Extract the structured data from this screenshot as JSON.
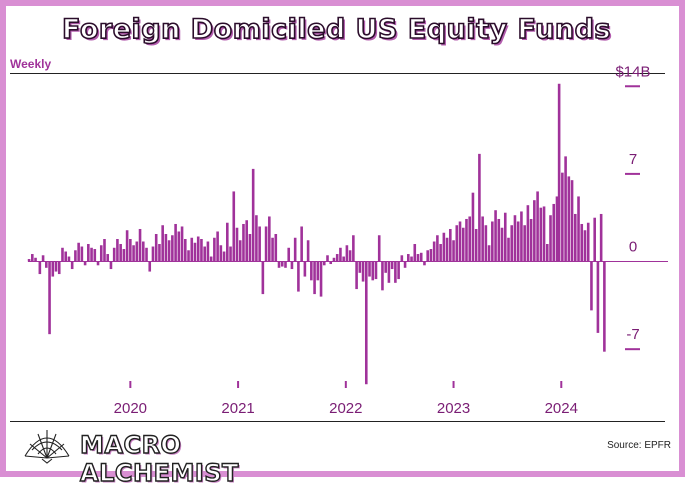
{
  "header": {
    "title": "Foreign Domiciled US Equity Funds",
    "subtitle": "Weekly"
  },
  "footer": {
    "brand": "MACRO ALCHEMIST",
    "source": "Source: EPFR"
  },
  "colors": {
    "bar": "#a0329a",
    "frame": "#d98fd3",
    "text": "#7a1d74"
  },
  "chart_data": {
    "type": "bar",
    "title": "Foreign Domiciled US Equity Funds",
    "subtitle": "Weekly",
    "y_unit": "$B",
    "ylim": [
      -10.5,
      14.5
    ],
    "yticks": [
      {
        "value": 14,
        "label": "$14B"
      },
      {
        "value": 7,
        "label": "7"
      },
      {
        "value": 0,
        "label": "0"
      },
      {
        "value": -7,
        "label": "-7"
      }
    ],
    "xlim": [
      2019.05,
      2024.48
    ],
    "xticks": [
      {
        "value": 2020,
        "label": "2020"
      },
      {
        "value": 2021,
        "label": "2021"
      },
      {
        "value": 2022,
        "label": "2022"
      },
      {
        "value": 2023,
        "label": "2023"
      },
      {
        "value": 2024,
        "label": "2024"
      }
    ],
    "grid": false,
    "legend": "none",
    "points": [
      {
        "x": 2019.06,
        "y": 0.2
      },
      {
        "x": 2019.09,
        "y": 0.6
      },
      {
        "x": 2019.12,
        "y": 0.3
      },
      {
        "x": 2019.16,
        "y": -1.0
      },
      {
        "x": 2019.19,
        "y": 0.5
      },
      {
        "x": 2019.22,
        "y": -0.5
      },
      {
        "x": 2019.25,
        "y": -5.8
      },
      {
        "x": 2019.28,
        "y": -1.2
      },
      {
        "x": 2019.31,
        "y": -0.8
      },
      {
        "x": 2019.34,
        "y": -1.0
      },
      {
        "x": 2019.37,
        "y": 1.1
      },
      {
        "x": 2019.4,
        "y": 0.8
      },
      {
        "x": 2019.43,
        "y": 0.4
      },
      {
        "x": 2019.46,
        "y": -0.6
      },
      {
        "x": 2019.49,
        "y": 0.9
      },
      {
        "x": 2019.52,
        "y": 1.5
      },
      {
        "x": 2019.55,
        "y": 1.2
      },
      {
        "x": 2019.58,
        "y": -0.3
      },
      {
        "x": 2019.61,
        "y": 1.4
      },
      {
        "x": 2019.64,
        "y": 1.1
      },
      {
        "x": 2019.67,
        "y": 1.0
      },
      {
        "x": 2019.7,
        "y": -0.3
      },
      {
        "x": 2019.73,
        "y": 1.3
      },
      {
        "x": 2019.76,
        "y": 1.8
      },
      {
        "x": 2019.79,
        "y": 0.6
      },
      {
        "x": 2019.82,
        "y": -0.6
      },
      {
        "x": 2019.85,
        "y": 1.1
      },
      {
        "x": 2019.88,
        "y": 1.8
      },
      {
        "x": 2019.91,
        "y": 1.4
      },
      {
        "x": 2019.94,
        "y": 1.0
      },
      {
        "x": 2019.97,
        "y": 2.5
      },
      {
        "x": 2020.0,
        "y": 1.8
      },
      {
        "x": 2020.03,
        "y": 1.3
      },
      {
        "x": 2020.06,
        "y": 1.6
      },
      {
        "x": 2020.09,
        "y": 2.6
      },
      {
        "x": 2020.12,
        "y": 1.6
      },
      {
        "x": 2020.15,
        "y": 1.1
      },
      {
        "x": 2020.18,
        "y": -0.8
      },
      {
        "x": 2020.21,
        "y": 1.2
      },
      {
        "x": 2020.24,
        "y": 2.2
      },
      {
        "x": 2020.27,
        "y": 1.4
      },
      {
        "x": 2020.3,
        "y": 2.9
      },
      {
        "x": 2020.33,
        "y": 2.2
      },
      {
        "x": 2020.36,
        "y": 1.7
      },
      {
        "x": 2020.39,
        "y": 2.1
      },
      {
        "x": 2020.42,
        "y": 3.0
      },
      {
        "x": 2020.45,
        "y": 2.4
      },
      {
        "x": 2020.48,
        "y": 2.8
      },
      {
        "x": 2020.51,
        "y": 1.8
      },
      {
        "x": 2020.54,
        "y": 0.9
      },
      {
        "x": 2020.57,
        "y": 1.9
      },
      {
        "x": 2020.6,
        "y": 1.5
      },
      {
        "x": 2020.63,
        "y": 2.0
      },
      {
        "x": 2020.66,
        "y": 1.8
      },
      {
        "x": 2020.69,
        "y": 1.2
      },
      {
        "x": 2020.72,
        "y": 1.6
      },
      {
        "x": 2020.75,
        "y": 0.4
      },
      {
        "x": 2020.78,
        "y": 1.9
      },
      {
        "x": 2020.81,
        "y": 2.4
      },
      {
        "x": 2020.84,
        "y": 1.3
      },
      {
        "x": 2020.87,
        "y": 0.8
      },
      {
        "x": 2020.9,
        "y": 3.1
      },
      {
        "x": 2020.93,
        "y": 1.2
      },
      {
        "x": 2020.96,
        "y": 5.6
      },
      {
        "x": 2020.99,
        "y": 2.7
      },
      {
        "x": 2021.02,
        "y": 1.7
      },
      {
        "x": 2021.05,
        "y": 3.0
      },
      {
        "x": 2021.08,
        "y": 3.3
      },
      {
        "x": 2021.11,
        "y": 2.2
      },
      {
        "x": 2021.14,
        "y": 7.4
      },
      {
        "x": 2021.17,
        "y": 3.7
      },
      {
        "x": 2021.2,
        "y": 2.8
      },
      {
        "x": 2021.23,
        "y": -2.6
      },
      {
        "x": 2021.26,
        "y": 2.8
      },
      {
        "x": 2021.29,
        "y": 3.6
      },
      {
        "x": 2021.32,
        "y": 1.9
      },
      {
        "x": 2021.35,
        "y": 2.2
      },
      {
        "x": 2021.38,
        "y": -0.5
      },
      {
        "x": 2021.41,
        "y": -0.4
      },
      {
        "x": 2021.44,
        "y": -0.5
      },
      {
        "x": 2021.47,
        "y": 1.1
      },
      {
        "x": 2021.5,
        "y": -0.6
      },
      {
        "x": 2021.53,
        "y": 1.9
      },
      {
        "x": 2021.56,
        "y": -2.4
      },
      {
        "x": 2021.59,
        "y": 2.8
      },
      {
        "x": 2021.62,
        "y": -1.2
      },
      {
        "x": 2021.65,
        "y": 1.7
      },
      {
        "x": 2021.68,
        "y": -1.5
      },
      {
        "x": 2021.71,
        "y": -2.6
      },
      {
        "x": 2021.74,
        "y": -1.5
      },
      {
        "x": 2021.77,
        "y": -2.8
      },
      {
        "x": 2021.8,
        "y": -0.3
      },
      {
        "x": 2021.83,
        "y": 0.5
      },
      {
        "x": 2021.86,
        "y": -0.2
      },
      {
        "x": 2021.89,
        "y": 0.3
      },
      {
        "x": 2021.92,
        "y": 0.6
      },
      {
        "x": 2021.95,
        "y": 1.1
      },
      {
        "x": 2021.98,
        "y": 0.4
      },
      {
        "x": 2022.01,
        "y": 1.3
      },
      {
        "x": 2022.04,
        "y": 0.9
      },
      {
        "x": 2022.07,
        "y": 2.1
      },
      {
        "x": 2022.1,
        "y": -2.2
      },
      {
        "x": 2022.13,
        "y": -0.9
      },
      {
        "x": 2022.16,
        "y": -1.6
      },
      {
        "x": 2022.19,
        "y": -9.8
      },
      {
        "x": 2022.22,
        "y": -1.2
      },
      {
        "x": 2022.25,
        "y": -1.5
      },
      {
        "x": 2022.28,
        "y": -1.4
      },
      {
        "x": 2022.31,
        "y": 2.1
      },
      {
        "x": 2022.34,
        "y": -2.3
      },
      {
        "x": 2022.37,
        "y": -0.9
      },
      {
        "x": 2022.4,
        "y": -1.7
      },
      {
        "x": 2022.43,
        "y": -0.6
      },
      {
        "x": 2022.46,
        "y": -1.7
      },
      {
        "x": 2022.49,
        "y": -1.4
      },
      {
        "x": 2022.52,
        "y": 0.5
      },
      {
        "x": 2022.55,
        "y": -0.5
      },
      {
        "x": 2022.58,
        "y": 0.6
      },
      {
        "x": 2022.61,
        "y": 0.4
      },
      {
        "x": 2022.64,
        "y": 1.4
      },
      {
        "x": 2022.67,
        "y": 0.6
      },
      {
        "x": 2022.7,
        "y": 0.7
      },
      {
        "x": 2022.73,
        "y": -0.3
      },
      {
        "x": 2022.76,
        "y": 0.9
      },
      {
        "x": 2022.79,
        "y": 1.0
      },
      {
        "x": 2022.82,
        "y": 1.6
      },
      {
        "x": 2022.85,
        "y": 2.1
      },
      {
        "x": 2022.88,
        "y": 1.4
      },
      {
        "x": 2022.91,
        "y": 2.3
      },
      {
        "x": 2022.94,
        "y": 1.9
      },
      {
        "x": 2022.97,
        "y": 2.6
      },
      {
        "x": 2023.0,
        "y": 1.7
      },
      {
        "x": 2023.03,
        "y": 2.9
      },
      {
        "x": 2023.06,
        "y": 3.2
      },
      {
        "x": 2023.09,
        "y": 2.7
      },
      {
        "x": 2023.12,
        "y": 3.4
      },
      {
        "x": 2023.15,
        "y": 3.6
      },
      {
        "x": 2023.18,
        "y": 5.5
      },
      {
        "x": 2023.21,
        "y": 2.6
      },
      {
        "x": 2023.24,
        "y": 8.6
      },
      {
        "x": 2023.27,
        "y": 3.6
      },
      {
        "x": 2023.3,
        "y": 2.9
      },
      {
        "x": 2023.33,
        "y": 1.3
      },
      {
        "x": 2023.36,
        "y": 3.2
      },
      {
        "x": 2023.39,
        "y": 4.1
      },
      {
        "x": 2023.42,
        "y": 3.4
      },
      {
        "x": 2023.45,
        "y": 2.7
      },
      {
        "x": 2023.48,
        "y": 3.9
      },
      {
        "x": 2023.51,
        "y": 1.9
      },
      {
        "x": 2023.54,
        "y": 2.9
      },
      {
        "x": 2023.57,
        "y": 3.7
      },
      {
        "x": 2023.6,
        "y": 3.2
      },
      {
        "x": 2023.63,
        "y": 4.0
      },
      {
        "x": 2023.66,
        "y": 2.9
      },
      {
        "x": 2023.69,
        "y": 4.5
      },
      {
        "x": 2023.72,
        "y": 3.4
      },
      {
        "x": 2023.75,
        "y": 4.9
      },
      {
        "x": 2023.78,
        "y": 5.6
      },
      {
        "x": 2023.81,
        "y": 4.3
      },
      {
        "x": 2023.84,
        "y": 4.4
      },
      {
        "x": 2023.87,
        "y": 1.4
      },
      {
        "x": 2023.9,
        "y": 3.7
      },
      {
        "x": 2023.93,
        "y": 4.6
      },
      {
        "x": 2023.96,
        "y": 5.2
      },
      {
        "x": 2023.98,
        "y": 14.2
      },
      {
        "x": 2024.01,
        "y": 7.1
      },
      {
        "x": 2024.04,
        "y": 8.4
      },
      {
        "x": 2024.07,
        "y": 6.8
      },
      {
        "x": 2024.1,
        "y": 6.5
      },
      {
        "x": 2024.13,
        "y": 3.8
      },
      {
        "x": 2024.16,
        "y": 5.2
      },
      {
        "x": 2024.19,
        "y": 3.0
      },
      {
        "x": 2024.22,
        "y": 2.5
      },
      {
        "x": 2024.25,
        "y": 3.1
      },
      {
        "x": 2024.28,
        "y": -3.9
      },
      {
        "x": 2024.31,
        "y": 3.5
      },
      {
        "x": 2024.34,
        "y": -5.7
      },
      {
        "x": 2024.37,
        "y": 3.8
      },
      {
        "x": 2024.4,
        "y": -7.2
      }
    ],
    "neg_markers": [
      {
        "x": 2019.25,
        "y": -5.8
      },
      {
        "x": 2021.23,
        "y": -2.6
      },
      {
        "x": 2022.19,
        "y": -9.8
      },
      {
        "x": 2023.87,
        "y": 1.4
      },
      {
        "x": 2024.28,
        "y": -3.9
      },
      {
        "x": 2024.34,
        "y": -5.7
      },
      {
        "x": 2024.4,
        "y": -7.2
      }
    ]
  }
}
